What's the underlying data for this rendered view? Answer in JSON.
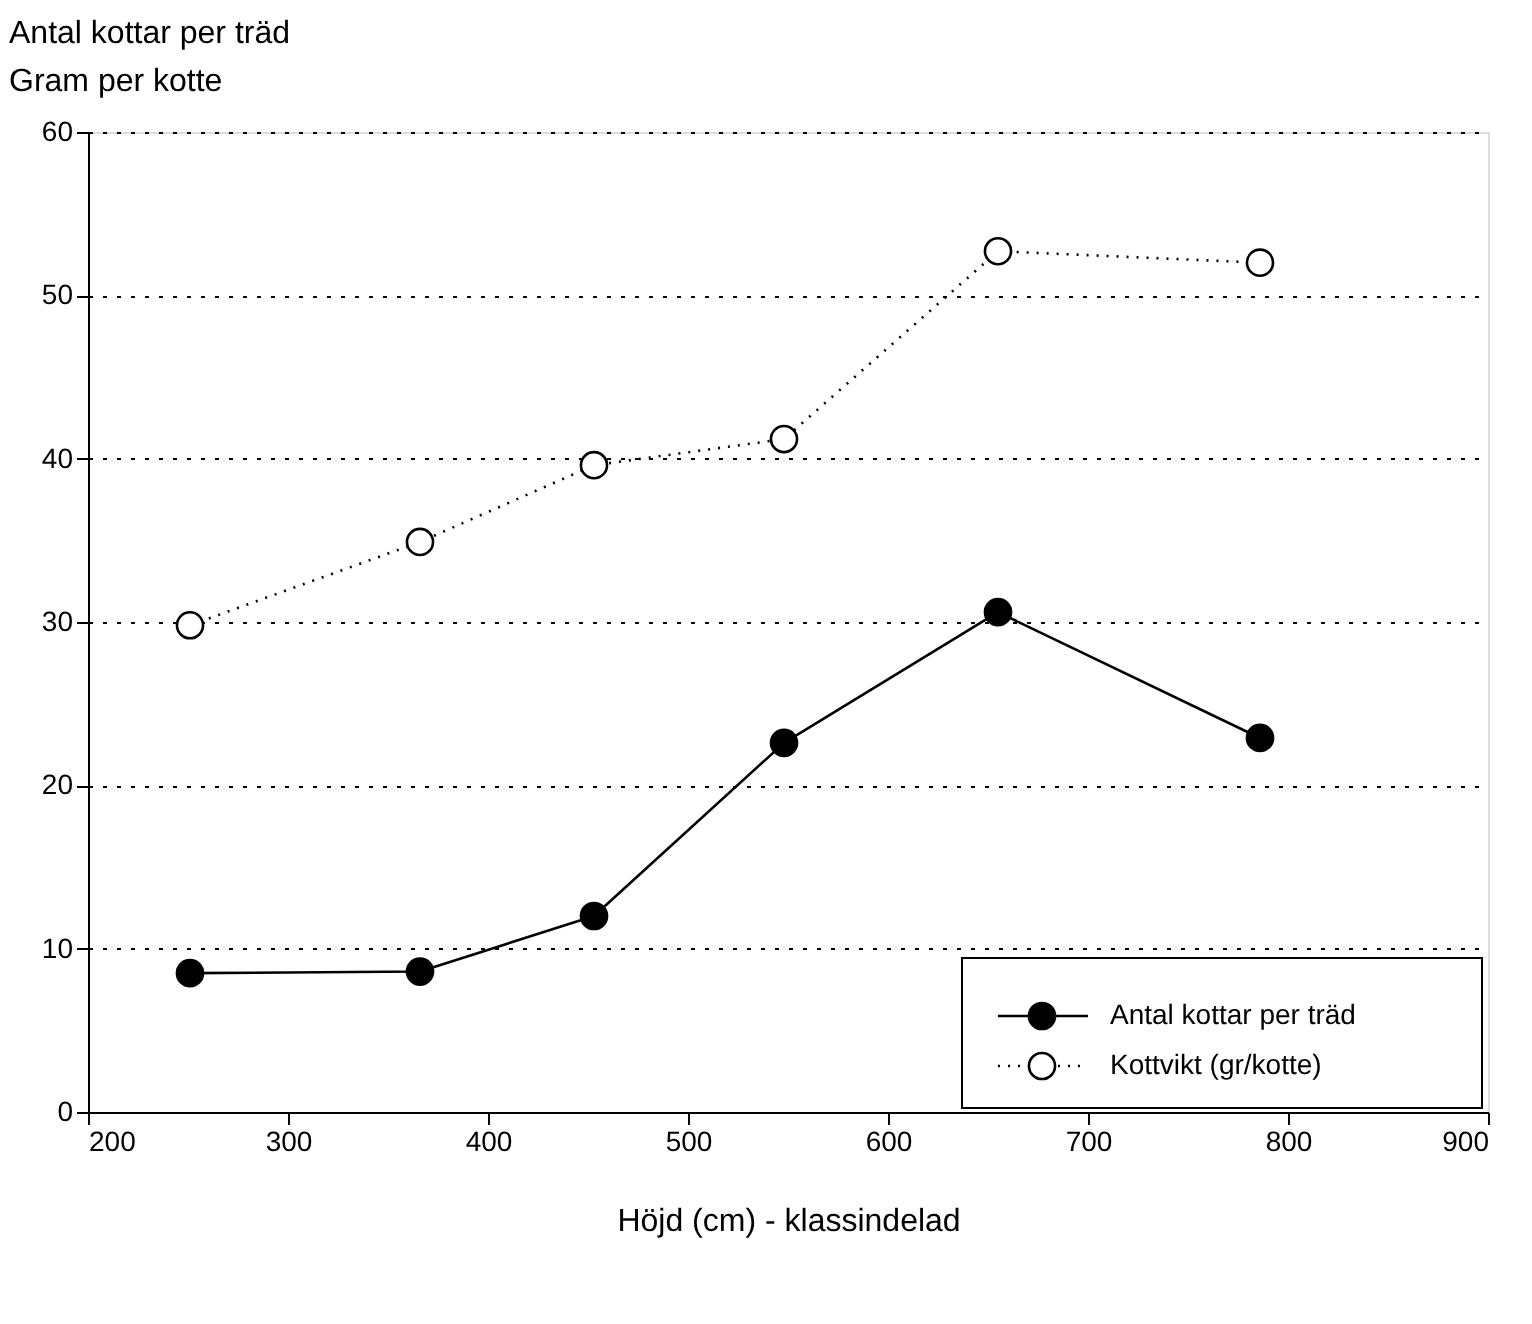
{
  "chart_data": {
    "type": "line",
    "ylabel": "Antal kottar per träd\nGram per kotte",
    "xlabel": "Höjd (cm) - klassindelad",
    "x": [
      251,
      366,
      453,
      548,
      655,
      786
    ],
    "series": [
      {
        "name": "Antal kottar per träd",
        "color": "#000000",
        "values": [
          8.5,
          8.6,
          12.0,
          22.6,
          30.6,
          22.9
        ],
        "line_style": "solid",
        "marker": "circle"
      },
      {
        "name": "Kottvikt (gr/kotte)",
        "color": "#000000",
        "values": [
          29.8,
          34.9,
          39.6,
          41.2,
          52.7,
          52.0
        ],
        "line_style": "dotted",
        "marker": "circle"
      }
    ],
    "xlim": [
      200,
      900
    ],
    "xticks": [
      200,
      300,
      400,
      500,
      600,
      700,
      800,
      900
    ],
    "ylim": [
      0,
      60
    ],
    "yticks": [
      0,
      10,
      20,
      30,
      40,
      50,
      60
    ],
    "grid": "y",
    "legend": "bottom right"
  }
}
